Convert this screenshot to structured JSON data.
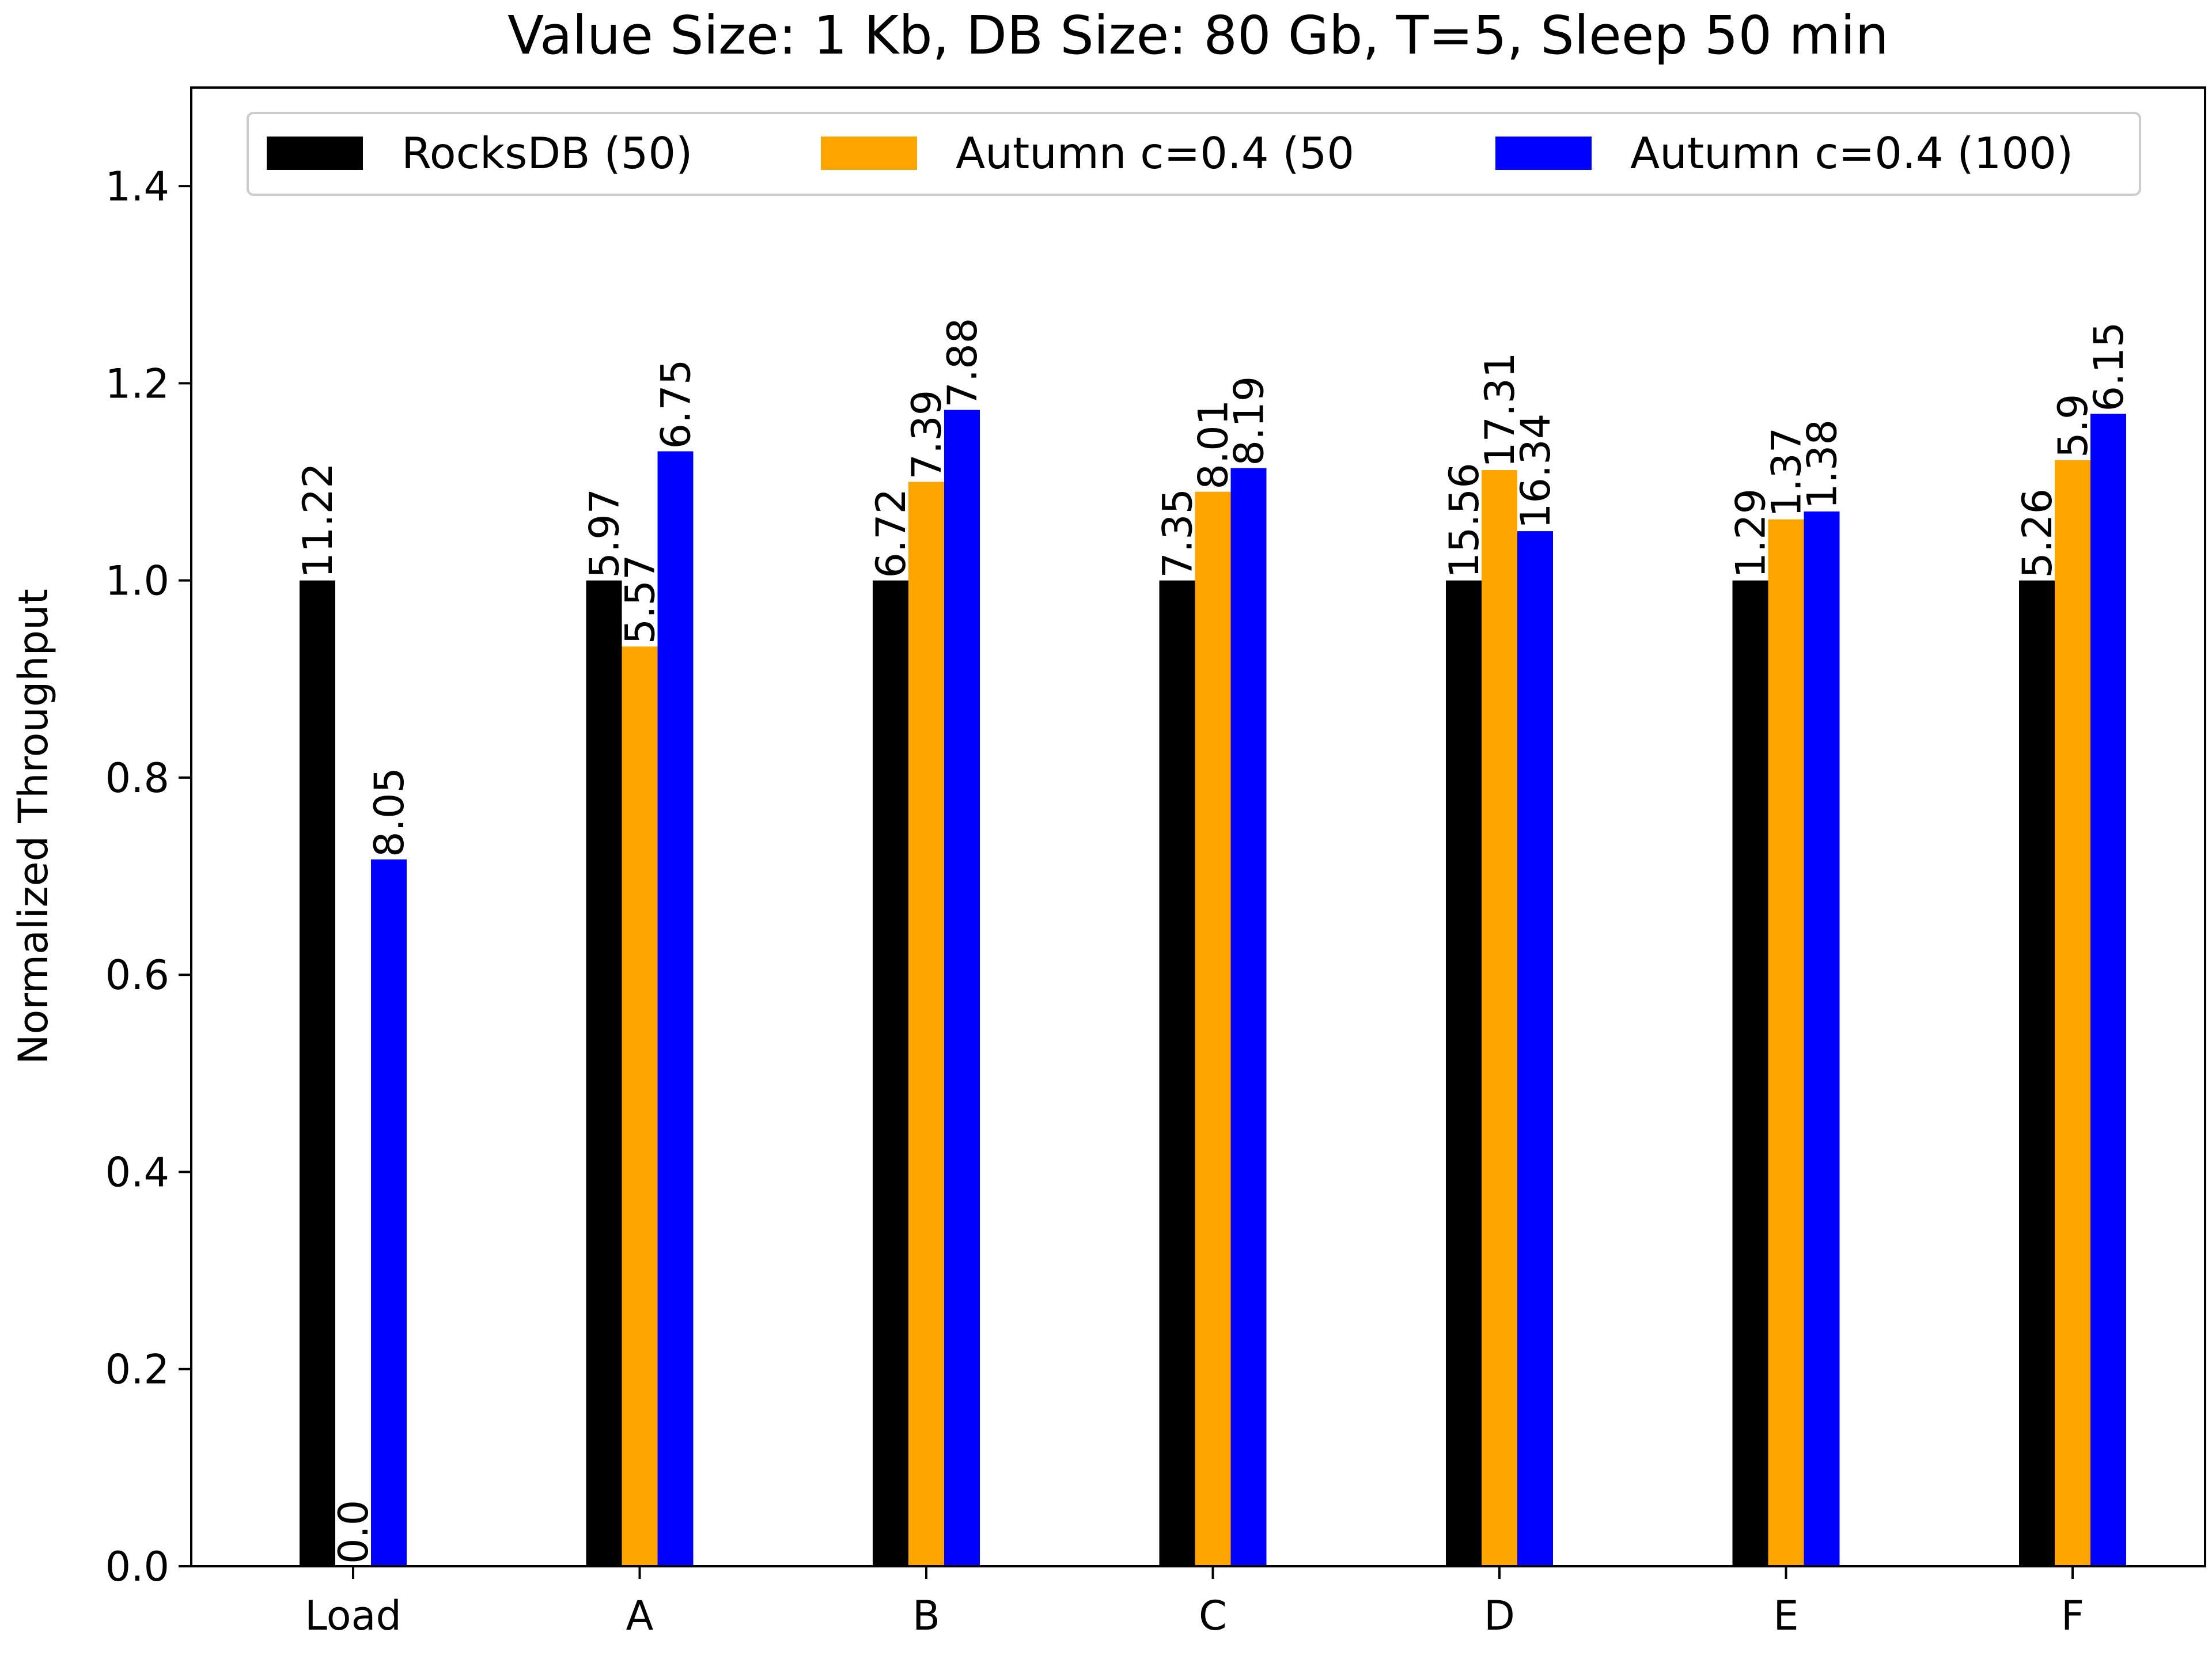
{
  "chart_data": {
    "type": "bar",
    "title": "Value Size: 1 Kb, DB Size: 80 Gb, T=5, Sleep 50 min",
    "xlabel": "",
    "ylabel": "Normalized Throughput",
    "ylim": [
      0.0,
      1.5
    ],
    "yticks": [
      "0.0",
      "0.2",
      "0.4",
      "0.6",
      "0.8",
      "1.0",
      "1.2",
      "1.4"
    ],
    "grid": false,
    "legend_position": "top",
    "categories": [
      "Load",
      "A",
      "B",
      "C",
      "D",
      "E",
      "F"
    ],
    "series": [
      {
        "name": "RocksDB (50)",
        "color": "#000000",
        "values": [
          1.0,
          1.0,
          1.0,
          1.0,
          1.0,
          1.0,
          1.0
        ],
        "labels": [
          "11.22",
          "5.97",
          "6.72",
          "7.35",
          "15.56",
          "1.29",
          "5.26"
        ]
      },
      {
        "name": "Autumn c=0.4 (50",
        "color": "#FFA500",
        "values": [
          0.0,
          0.933,
          1.1,
          1.09,
          1.112,
          1.062,
          1.122
        ],
        "labels": [
          "0.0",
          "5.57",
          "7.39",
          "8.01",
          "17.31",
          "1.37",
          "5.9"
        ]
      },
      {
        "name": "Autumn c=0.4 (100)",
        "color": "#0000FF",
        "values": [
          0.717,
          1.131,
          1.173,
          1.114,
          1.05,
          1.07,
          1.169
        ],
        "labels": [
          "8.05",
          "6.75",
          "7.88",
          "8.19",
          "16.34",
          "1.38",
          "6.15"
        ]
      }
    ]
  }
}
